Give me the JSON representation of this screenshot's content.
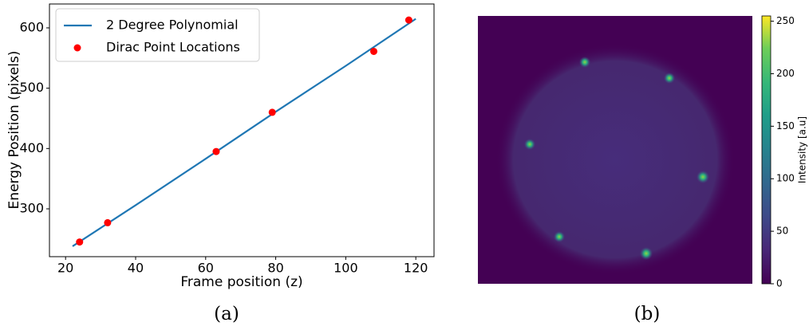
{
  "chart_data": [
    {
      "type": "line",
      "caption": "(a)",
      "xlabel": "Frame position (z)",
      "ylabel": "Energy Position (pixels)",
      "xlim": [
        15.4,
        125.2
      ],
      "xticks": [
        20,
        40,
        60,
        80,
        100,
        120
      ],
      "ylim": [
        220.7,
        639.6
      ],
      "yticks": [
        300,
        400,
        500,
        600
      ],
      "legend": "upper left",
      "series": [
        {
          "name": "2 Degree Polynomial",
          "type": "line",
          "color": "#1f77b4",
          "x": [
            22,
            40,
            60,
            80,
            100,
            120
          ],
          "values": [
            238,
            306,
            383,
            461,
            537,
            615
          ]
        },
        {
          "name": "Dirac Point Locations",
          "type": "scatter",
          "color": "#ff0000",
          "x": [
            24,
            32,
            63,
            79,
            108,
            118
          ],
          "values": [
            245,
            277,
            395,
            460,
            561,
            613
          ]
        }
      ]
    },
    {
      "type": "heatmap",
      "caption": "(b)",
      "colorbar_label": "Intensity [a.u]",
      "clim": [
        0,
        255
      ],
      "cticks": [
        0,
        50,
        100,
        150,
        200,
        250
      ]
    }
  ]
}
